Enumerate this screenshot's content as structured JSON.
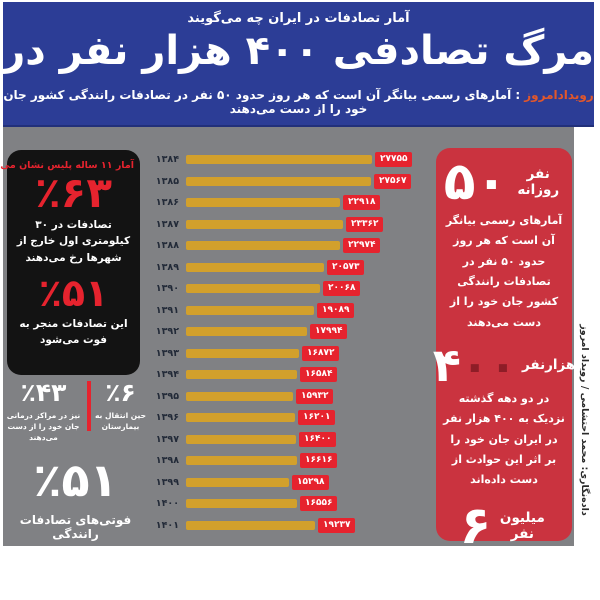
{
  "colors": {
    "header_blue": "#2c3d96",
    "canvas_gray": "#808184",
    "bar_gold": "#d2a02c",
    "accent_red": "#e6232e",
    "panel_red": "#ca333f",
    "panel_black": "#131313",
    "logo_orange": "#e2572b",
    "year_label_navy": "#222a38",
    "zeros_maroon": "#8e1d27"
  },
  "header": {
    "kicker": "آمار تصادفات در ایران چه می‌گویند",
    "title": "مرگ تصادفی ۴۰۰ هزار نفر در دو دهه",
    "source_logo": "رویدادامروز",
    "subtitle": ": آمارهای رسمی بیانگر آن است که هر روز حدود ۵۰ نفر در تصادفات رانندگی کشور جان خود را از دست می‌دهند"
  },
  "chart_data": {
    "type": "bar",
    "orientation": "horizontal",
    "categories": [
      "۱۳۸۴",
      "۱۳۸۵",
      "۱۳۸۶",
      "۱۳۸۷",
      "۱۳۸۸",
      "۱۳۸۹",
      "۱۳۹۰",
      "۱۳۹۱",
      "۱۳۹۲",
      "۱۳۹۳",
      "۱۳۹۴",
      "۱۳۹۵",
      "۱۳۹۶",
      "۱۳۹۷",
      "۱۳۹۸",
      "۱۳۹۹",
      "۱۴۰۰",
      "۱۴۰۱"
    ],
    "categories_latin": [
      1384,
      1385,
      1386,
      1387,
      1388,
      1389,
      1390,
      1391,
      1392,
      1393,
      1394,
      1395,
      1396,
      1397,
      1398,
      1399,
      1400,
      1401
    ],
    "values": [
      27755,
      27567,
      22918,
      23362,
      22974,
      20573,
      20068,
      19089,
      17994,
      16872,
      16584,
      15932,
      16201,
      16400,
      16616,
      15298,
      16556,
      19237
    ],
    "value_labels": [
      "۲۷۷۵۵",
      "۲۷۵۶۷",
      "۲۲۹۱۸",
      "۲۳۳۶۲",
      "۲۲۹۷۴",
      "۲۰۵۷۳",
      "۲۰۰۶۸",
      "۱۹۰۸۹",
      "۱۷۹۹۴",
      "۱۶۸۷۲",
      "۱۶۵۸۴",
      "۱۵۹۳۲",
      "۱۶۲۰۱",
      "۱۶۴۰۰",
      "۱۶۶۱۶",
      "۱۵۲۹۸",
      "۱۶۵۵۶",
      "۱۹۲۳۷"
    ],
    "xmax": 27755,
    "xlim": [
      0,
      27755
    ],
    "bar_color": "#d2a02c",
    "value_box_color": "#e6232e",
    "legend": "none",
    "grid": "off"
  },
  "police_panel": {
    "title": "آمار ۱۱ ساله پلیس نشان می‌دهد",
    "stats": [
      {
        "value": "٪۶۳",
        "caption": "تصادفات در ۳۰ کیلومتری اول خارج از شهرها رخ می‌دهند"
      },
      {
        "value": "٪۵۱",
        "caption": "این تصادفات منجر به فوت می‌شود"
      }
    ]
  },
  "side_stats": {
    "pair": [
      {
        "value": "٪۶",
        "caption": "حین انتقال به بیمارستان"
      },
      {
        "value": "٪۴۳",
        "caption": "نیز در مراکز درمانی جان خود را از دست می‌دهند"
      }
    ],
    "on_spot": {
      "value": "٪۵۱",
      "caption_line1": "فوتی‌های تصادفات رانندگی",
      "caption_line2": "در جا می‌میرند"
    }
  },
  "summary_panel": {
    "items": [
      {
        "number": "۵۰",
        "unit": "نفر روزانه",
        "body": "آمارهای رسمی بیانگر آن است که هر روز حدود ۵۰ نفر در تصادفات رانندگی کشور جان خود را از دست می‌دهند"
      },
      {
        "number": "۴",
        "zeros": "۰۰",
        "unit": "هزارنفر",
        "body": "در دو دهه گذشته نزدیک به ۴۰۰ هزار نفر در ایران جان خود را بر اثر این حوادث از دست داده‌اند"
      },
      {
        "number": "۶",
        "unit": "میلیون نفر",
        "body": "بیش از ۶ میلیون نفر نیز مصدوم شده‌اند"
      }
    ]
  },
  "credit": "داده‌نگاری: محمد احتشامی / رویداد امروز"
}
